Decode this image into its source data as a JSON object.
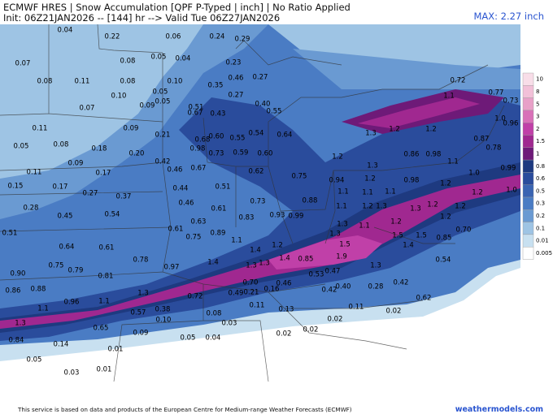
{
  "header": {
    "title": "ECMWF HRES | Snow Accumulation [QPF P-Typed | inch] | No Ratio Applied",
    "init": "Init: 06Z21JAN2026 -- [144] hr --> Valid Tue 06Z27JAN2026",
    "max": "MAX: 2.27 inch"
  },
  "legend": {
    "levels": [
      10,
      8,
      5,
      3,
      2,
      1.5,
      1,
      0.8,
      0.6,
      0.5,
      0.3,
      0.2,
      0.1,
      0.01,
      0.005
    ],
    "colors": [
      "#f8dde8",
      "#f2c0d8",
      "#e8a0c8",
      "#d870b8",
      "#c040a8",
      "#a02890",
      "#6e1a78",
      "#1e3a80",
      "#2a4c9c",
      "#3a64b2",
      "#4a7cc4",
      "#6a9ad2",
      "#9ec4e4",
      "#c8e0f0",
      "#ffffff"
    ]
  },
  "map": {
    "labels": [
      "0.04",
      "0.22",
      "0.06",
      "0.24",
      "0.29",
      "0.05",
      "0.04",
      "0.08",
      "0.07",
      "0.23",
      "0.08",
      "0.11",
      "0.08",
      "0.10",
      "0.46",
      "0.27",
      "0.72",
      "0.35",
      "0.10",
      "0.05",
      "0.27",
      "1.1",
      "0.77",
      "0.73",
      "0.07",
      "0.09",
      "0.05",
      "0.51",
      "0.67",
      "0.43",
      "0.40",
      "0.55",
      "1.0",
      "0.96",
      "0.11",
      "0.09",
      "0.21",
      "0.68",
      "0.60",
      "0.55",
      "0.54",
      "0.64",
      "1.3",
      "1.2",
      "1.2",
      "0.87",
      "0.05",
      "0.08",
      "0.18",
      "0.98",
      "0.73",
      "0.59",
      "0.60",
      "0.86",
      "0.98",
      "0.78",
      "0.20",
      "1.2",
      "0.09",
      "0.42",
      "1.3",
      "1.1",
      "0.99",
      "0.11",
      "0.17",
      "0.46",
      "0.67",
      "0.62",
      "0.75",
      "0.94",
      "1.2",
      "0.98",
      "1.2",
      "1.0",
      "0.15",
      "0.17",
      "0.27",
      "0.44",
      "0.51",
      "1.1",
      "1.1",
      "1.1",
      "1.0",
      "1.2",
      "0.37",
      "0.46",
      "0.73",
      "0.88",
      "1.1",
      "1.2",
      "1.3",
      "1.3",
      "1.2",
      "1.2",
      "0.28",
      "0.45",
      "0.54",
      "0.61",
      "0.83",
      "0.93",
      "0.99",
      "1.2",
      "1.2",
      "0.63",
      "1.3",
      "1.1",
      "0.70",
      "0.51",
      "0.61",
      "0.75",
      "0.89",
      "1.3",
      "1.5",
      "1.5",
      "0.85",
      "1.1",
      "1.5",
      "1.4",
      "0.64",
      "0.61",
      "1.4",
      "1.2",
      "0.78",
      "1.4",
      "1.3",
      "1.3",
      "1.4",
      "0.85",
      "1.9",
      "0.54",
      "0.75",
      "0.79",
      "0.97",
      "0.47",
      "1.3",
      "0.90",
      "0.81",
      "0.53",
      "0.70",
      "0.46",
      "0.40",
      "0.42",
      "0.28",
      "0.42",
      "0.86",
      "0.88",
      "1.3",
      "0.49",
      "0.21",
      "0.16",
      "0.72",
      "0.96",
      "1.1",
      "0.62",
      "1.1",
      "0.57",
      "0.38",
      "0.11",
      "0.13",
      "0.11",
      "0.02",
      "0.10",
      "0.08",
      "1.3",
      "0.03",
      "0.02",
      "0.65",
      "0.09",
      "0.02",
      "0.02",
      "0.84",
      "0.05",
      "0.04",
      "0.14",
      "0.01",
      "0.05",
      "0.01",
      "0.03"
    ]
  },
  "footer": {
    "credit": "This service is based on data and products of the European Centre for Medium-range Weather Forecasts (ECMWF)",
    "site": "weathermodels.com"
  }
}
